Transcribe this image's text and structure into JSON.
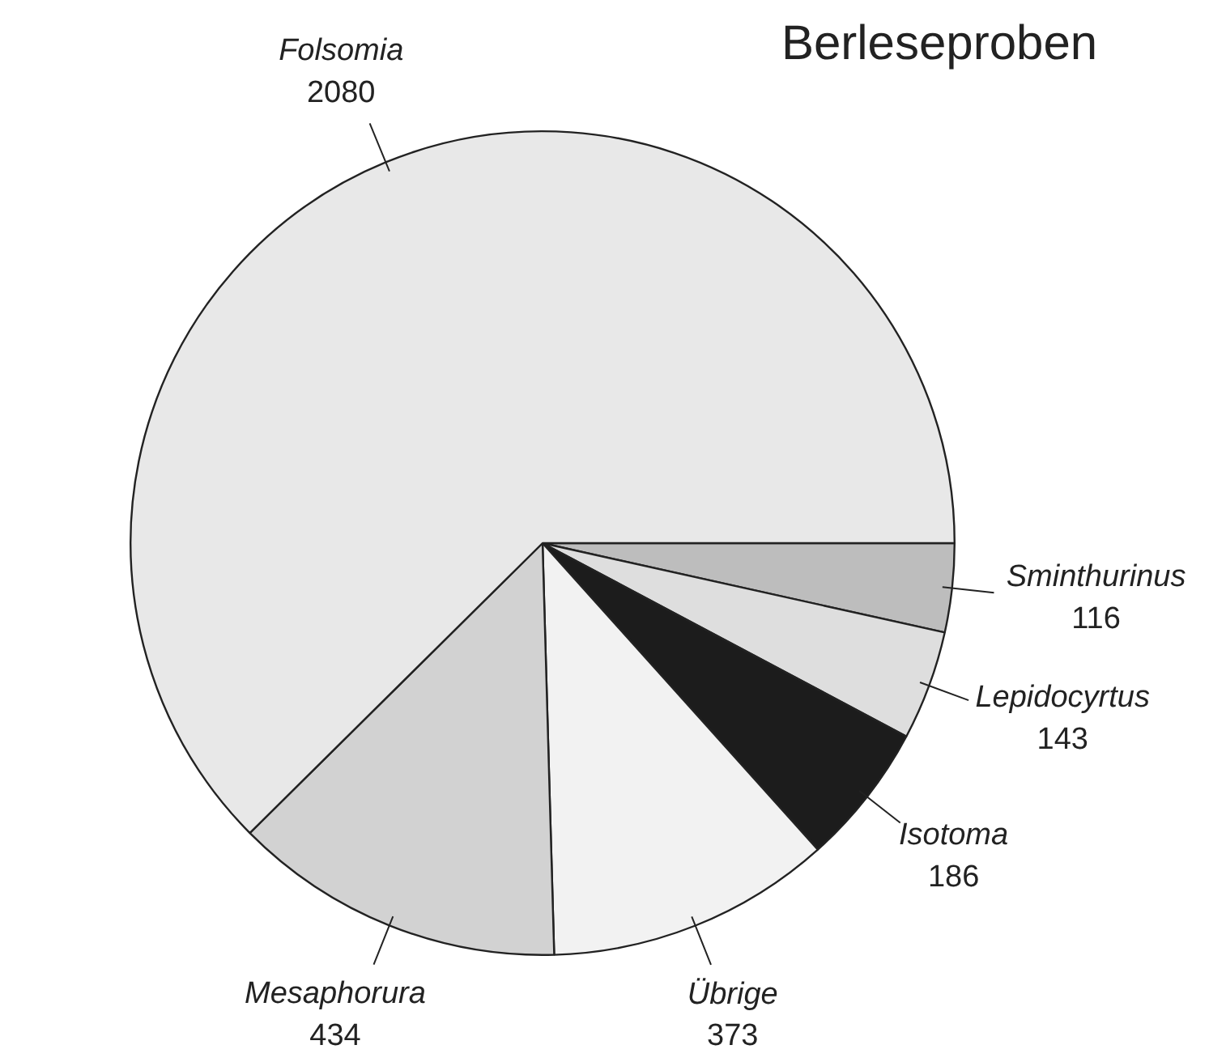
{
  "chart_data": {
    "type": "pie",
    "title": "Berleseproben",
    "categories": [
      "Sminthurinus",
      "Lepidocyrtus",
      "Isotoma",
      "Übrige",
      "Mesaphorura",
      "Folsomia"
    ],
    "values": [
      116,
      143,
      186,
      373,
      434,
      2080
    ],
    "colors": [
      "#bdbdbd",
      "#dedede",
      "#1c1c1c",
      "#f2f2f2",
      "#d2d2d2",
      "#e8e8e8"
    ],
    "data_labels": true,
    "legend": false
  }
}
